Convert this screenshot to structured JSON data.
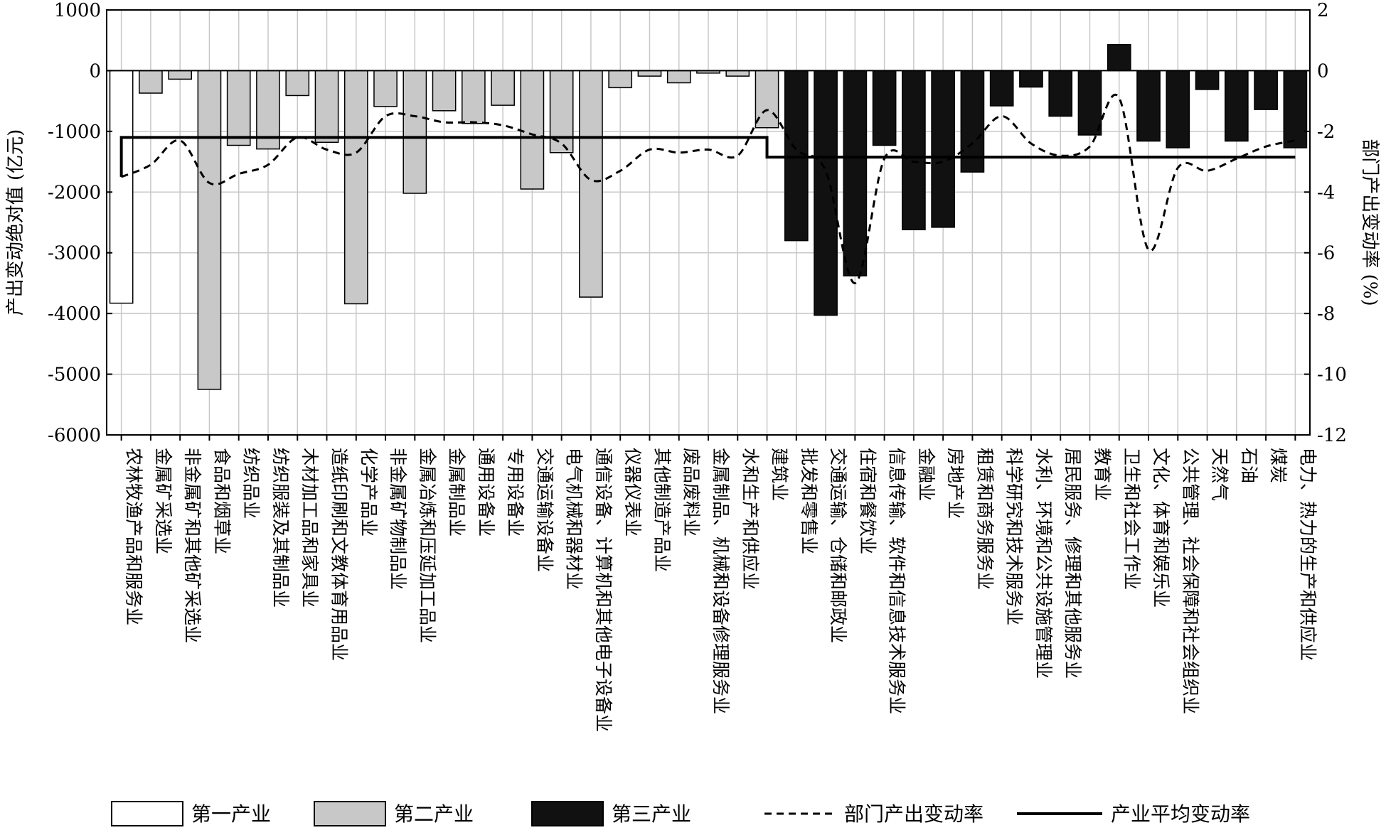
{
  "chart_data": {
    "type": "bar",
    "title": "",
    "ylabel": "产出变动绝对值 (亿元)",
    "y2label": "部门产出变动率 (%)",
    "ylim": [
      -6000,
      1000
    ],
    "y2lim": [
      -12,
      2
    ],
    "yticks": [
      1000,
      0,
      -1000,
      -2000,
      -3000,
      -4000,
      -5000,
      -6000
    ],
    "y2ticks": [
      2,
      0,
      -2,
      -4,
      -6,
      -8,
      -10,
      -12
    ],
    "grid": true,
    "legend_position": "bottom",
    "categories": [
      "农林牧渔产品和服务业",
      "金属矿采选业",
      "非金属矿和其他矿采选业",
      "食品和烟草业",
      "纺织品业",
      "纺织服装及其制品业",
      "木材加工品和家具业",
      "造纸印刷和文教体育用品业",
      "化学产品业",
      "非金属矿物制品业",
      "金属冶炼和压延加工品业",
      "金属制品业",
      "通用设备业",
      "专用设备业",
      "交通运输设备业",
      "电气机械和器材业",
      "通信设备、计算机和其他电子设备业",
      "仪器仪表业",
      "其他制造产品业",
      "废品废料业",
      "金属制品、机械和设备修理服务业",
      "水和生产和供应业",
      "建筑业",
      "批发和零售业",
      "交通运输、仓储和邮政业",
      "住宿和餐饮业",
      "信息传输、软件和信息技术服务业",
      "金融业",
      "房地产业",
      "租赁和商务服务业",
      "科学研究和技术服务业",
      "水利、环境和公共设施管理业",
      "居民服务、修理和其他服务业",
      "教育业",
      "卫生和社会工作业",
      "文化、体育和娱乐业",
      "公共管理、社会保障和社会组织业",
      "天然气",
      "石油",
      "煤炭",
      "电力、热力的生产和供应业"
    ],
    "industry_index": [
      0,
      1,
      1,
      1,
      1,
      1,
      1,
      1,
      1,
      1,
      1,
      1,
      1,
      1,
      1,
      1,
      1,
      1,
      1,
      1,
      1,
      1,
      1,
      2,
      2,
      2,
      2,
      2,
      2,
      2,
      2,
      2,
      2,
      2,
      2,
      2,
      2,
      2,
      2,
      2,
      2
    ],
    "series": [
      {
        "name": "产出变动绝对值",
        "kind": "bar",
        "axis": "left",
        "values": [
          -3830,
          -370,
          -140,
          -5250,
          -1230,
          -1290,
          -410,
          -1180,
          -3840,
          -590,
          -2020,
          -660,
          -870,
          -570,
          -1950,
          -1350,
          -3730,
          -280,
          -90,
          -200,
          -40,
          -90,
          -940,
          -2800,
          -4030,
          -3380,
          -1230,
          -2620,
          -2580,
          -1670,
          -580,
          -270,
          -750,
          -1060,
          430,
          -1160,
          -1270,
          -310,
          -1160,
          -640,
          -1270
        ]
      },
      {
        "name": "部门产出变动率",
        "kind": "line",
        "style": "dashed",
        "axis": "right",
        "values": [
          -3.5,
          -3.1,
          -2.3,
          -3.7,
          -3.4,
          -3.1,
          -2.2,
          -2.6,
          -2.7,
          -1.5,
          -1.5,
          -1.7,
          -1.7,
          -1.8,
          -2.1,
          -2.4,
          -3.6,
          -3.3,
          -2.6,
          -2.7,
          -2.6,
          -2.8,
          -1.3,
          -2.6,
          -3.3,
          -7.0,
          -2.9,
          -3.0,
          -3.0,
          -2.4,
          -1.5,
          -2.4,
          -2.8,
          -2.5,
          -0.9,
          -5.9,
          -3.2,
          -3.3,
          -2.9,
          -2.5,
          -2.3
        ]
      },
      {
        "name": "产业平均变动率",
        "kind": "step",
        "axis": "right",
        "first_x": -3.5,
        "levels": [
          -2.2,
          -2.2,
          -2.85
        ],
        "last_x": -2.85
      }
    ],
    "legend": [
      {
        "label": "第一产业",
        "type": "bar",
        "color": "#ffffff"
      },
      {
        "label": "第二产业",
        "type": "bar",
        "color": "#c8c8c8"
      },
      {
        "label": "第三产业",
        "type": "bar",
        "color": "#111111"
      },
      {
        "label": "部门产出变动率",
        "type": "dashed"
      },
      {
        "label": "产业平均变动率",
        "type": "solid"
      }
    ],
    "colors": {
      "primary": "#ffffff",
      "secondary": "#c8c8c8",
      "tertiary": "#111111",
      "line": "#000000",
      "grid": "#c8c8c8"
    }
  }
}
